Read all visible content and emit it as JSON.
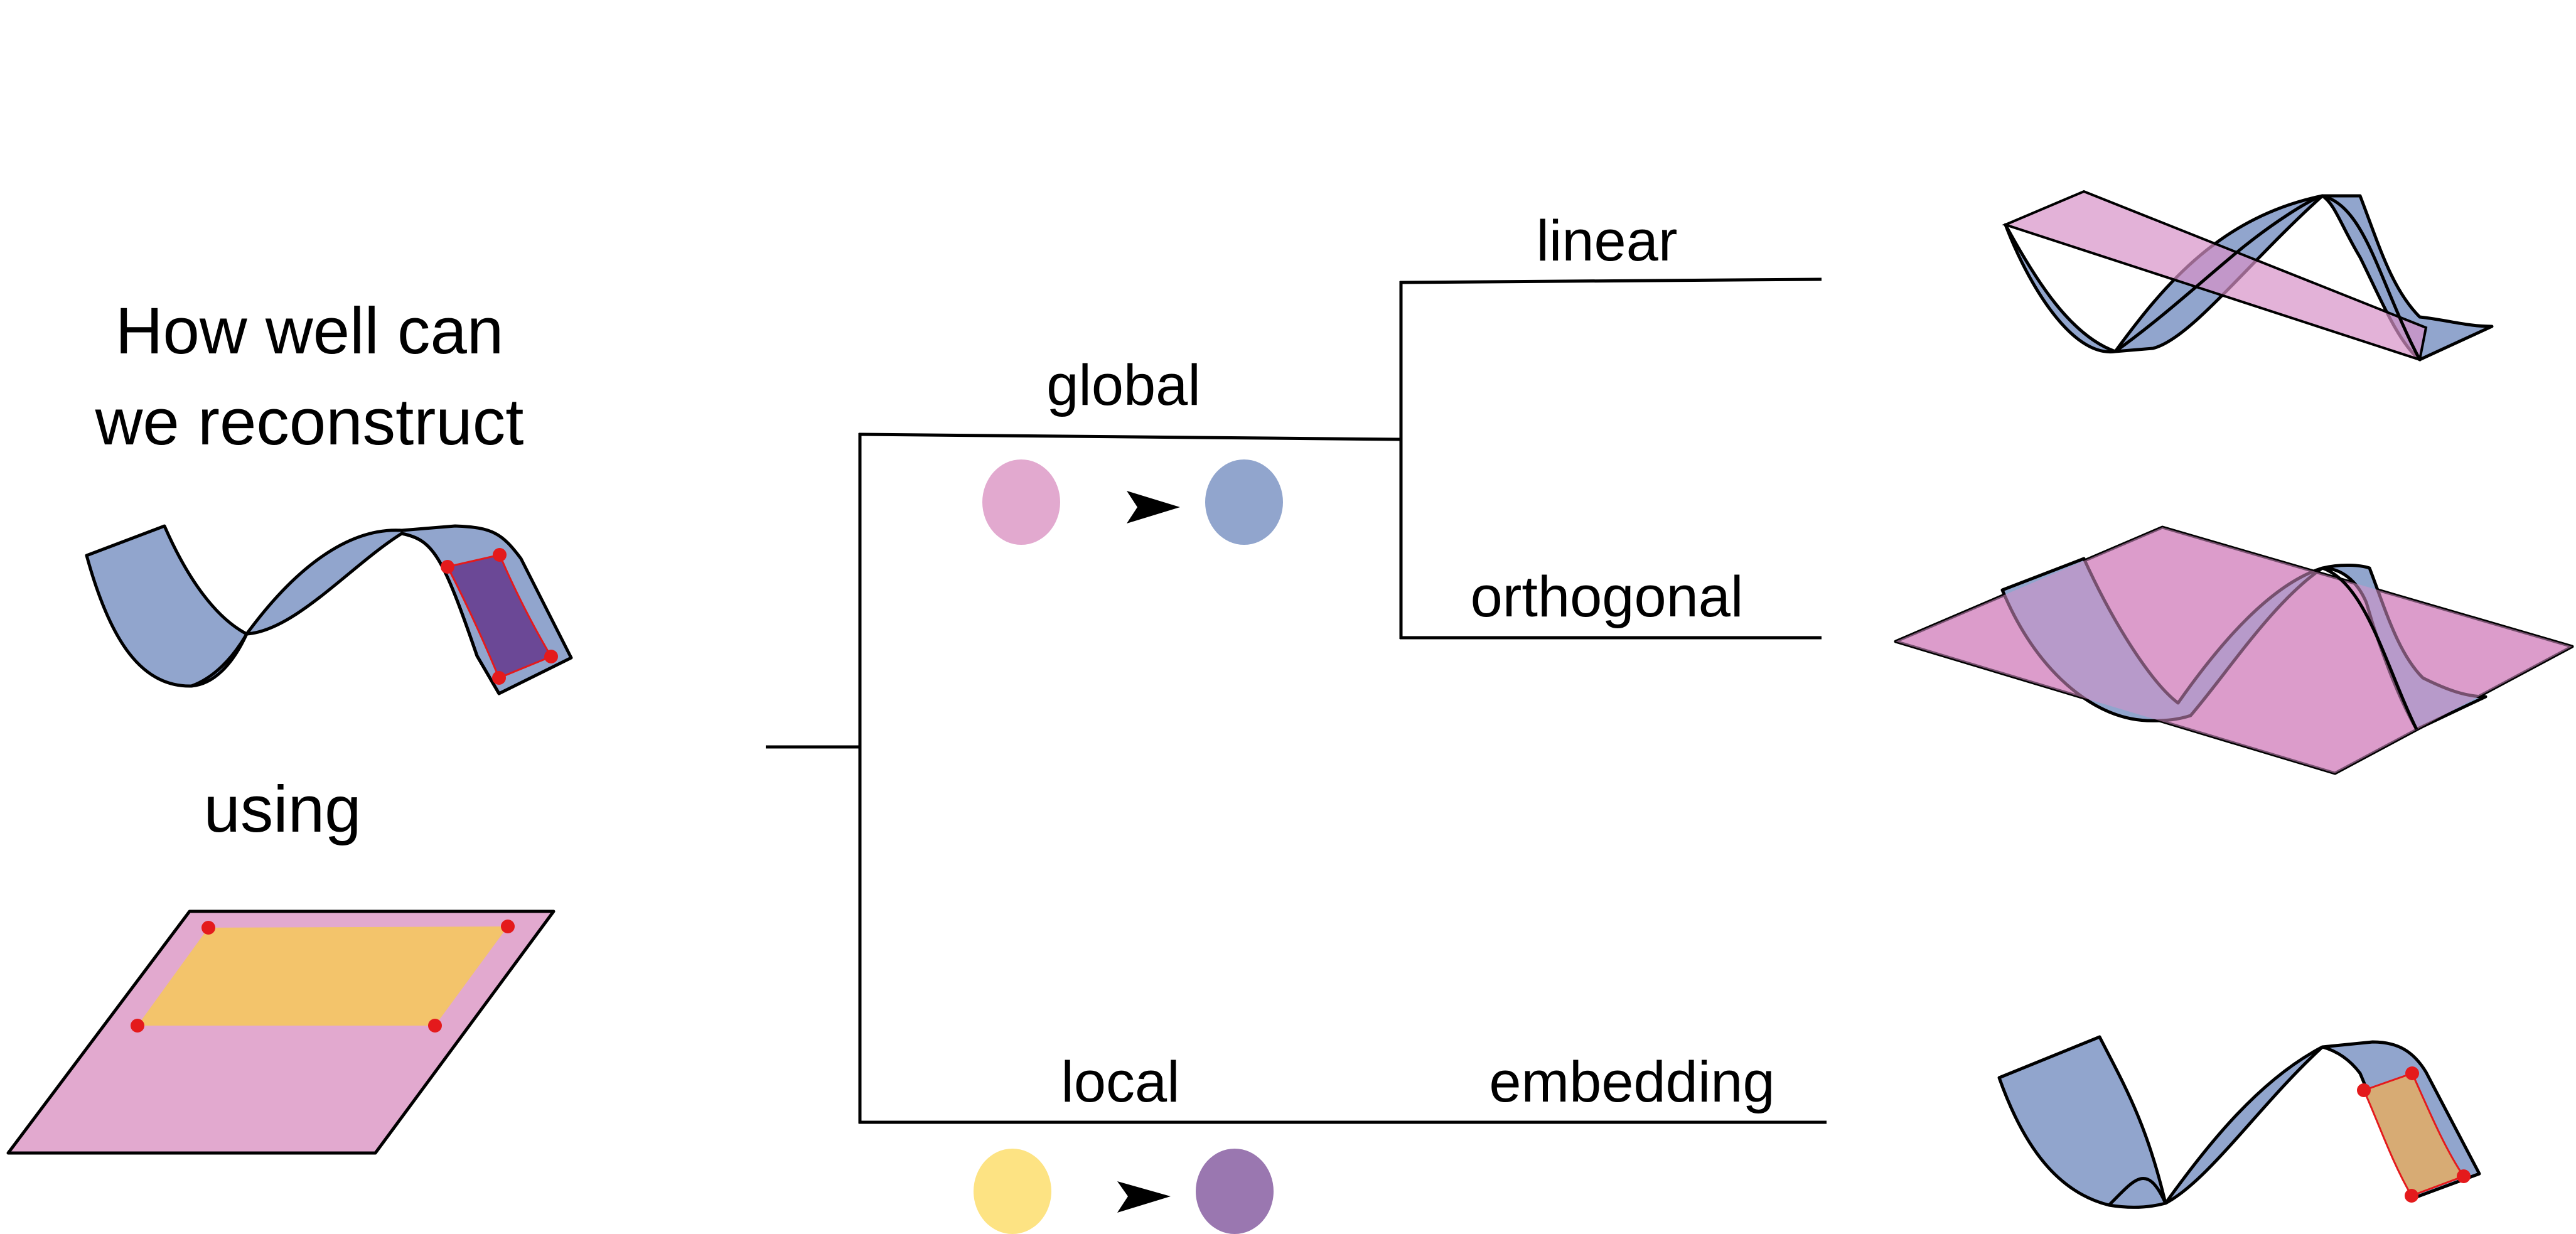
{
  "question": {
    "line1": "How well can",
    "line2": "we reconstruct",
    "using": "using"
  },
  "branches": {
    "global": "global",
    "local": "local",
    "linear": "linear",
    "orthogonal": "orthogonal",
    "embedding": "embedding"
  },
  "colors": {
    "ribbon": "#91a5cd",
    "ribbon_patch": "#6b4896",
    "plane": "#e2a9cf",
    "plane_patch": "#f3c46b",
    "global_from": "#e2a9cf",
    "global_to": "#91a5cd",
    "local_from": "#fde383",
    "local_to": "#9a77b0",
    "marker": "#e41a1c",
    "line": "#000000"
  },
  "icons": {
    "arrow": "arrowhead-icon"
  }
}
